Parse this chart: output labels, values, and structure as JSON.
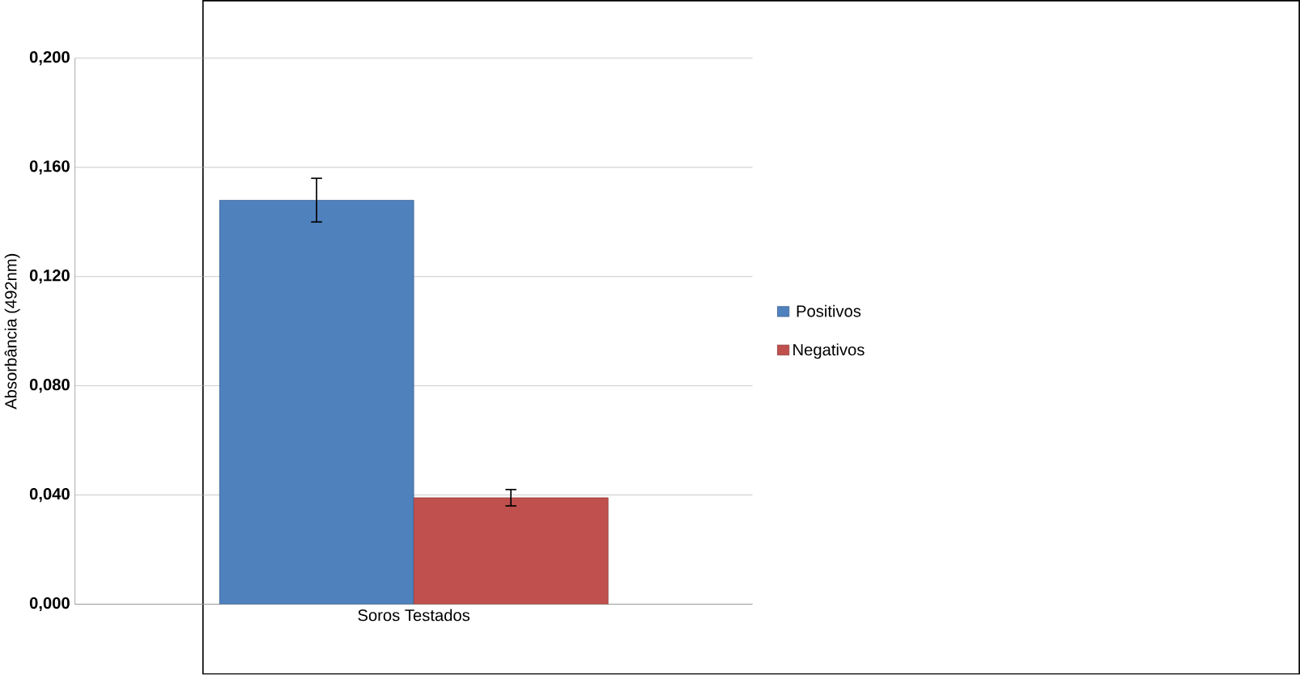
{
  "chart_data": {
    "type": "bar",
    "ylabel": "Absorbância (492nm)",
    "categories": [
      "Soros Testados"
    ],
    "series": [
      {
        "name": "Positivos",
        "color": "#4f81bd",
        "values": [
          0.148
        ],
        "errors": [
          0.008
        ]
      },
      {
        "name": "Negativos",
        "color": "#c0504d",
        "values": [
          0.039
        ],
        "errors": [
          0.003
        ]
      }
    ],
    "ylim": [
      0,
      0.2
    ],
    "yticks": [
      {
        "value": 0,
        "label": "0,000"
      },
      {
        "value": 0.04,
        "label": "0,040"
      },
      {
        "value": 0.08,
        "label": "0,080"
      },
      {
        "value": 0.12,
        "label": "0,120"
      },
      {
        "value": 0.16,
        "label": "0,160"
      },
      {
        "value": 0.2,
        "label": "0,200"
      }
    ],
    "grid": "y",
    "legend": "right"
  }
}
